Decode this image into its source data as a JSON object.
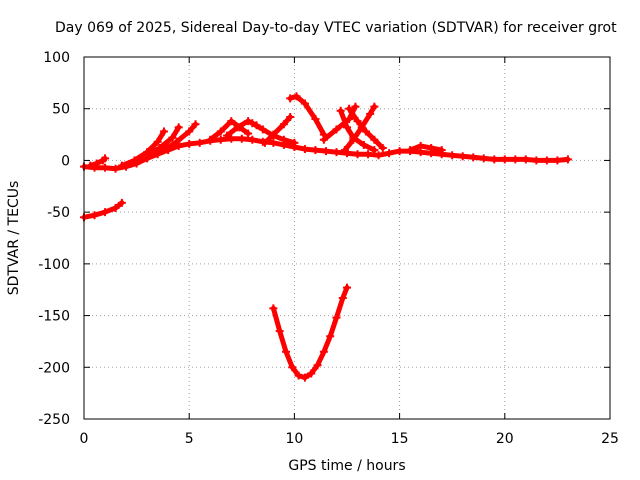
{
  "chart_data": {
    "type": "line",
    "title": "Day 069 of 2025, Sidereal Day-to-day VTEC variation (SDTVAR) for receiver grot",
    "xlabel": "GPS time / hours",
    "ylabel": "SDTVAR / TECUs",
    "xlim": [
      0,
      25
    ],
    "ylim": [
      -250,
      100
    ],
    "xticks": [
      0,
      5,
      10,
      15,
      20,
      25
    ],
    "yticks": [
      -250,
      -200,
      -150,
      -100,
      -50,
      0,
      50,
      100
    ],
    "xtick_labels": [
      "0",
      "5",
      "10",
      "15",
      "20",
      "25"
    ],
    "ytick_labels": [
      "-250",
      "-200",
      "-150",
      "-100",
      "-50",
      "0",
      "50",
      "100"
    ],
    "grid": true,
    "color": "#ff0000",
    "series": [
      {
        "x": [
          0,
          0.5,
          1.0,
          1.5,
          2.0,
          2.5,
          3.0,
          3.5,
          4.0,
          4.5,
          5.0,
          5.5,
          6.0,
          6.5,
          7.0,
          7.5,
          8.0,
          8.5,
          9.0,
          9.5,
          10.0,
          10.5,
          11.0,
          11.5,
          12.0,
          12.5,
          13.0,
          13.5,
          14.0,
          14.5,
          15.0,
          15.5,
          16.0,
          16.5,
          17.0,
          17.5,
          18.0,
          18.5,
          19.0,
          19.5,
          20.0,
          20.5,
          21.0,
          21.5,
          22.0,
          22.5,
          23.0
        ],
        "y": [
          -6,
          -7,
          -7,
          -8,
          -6,
          -3,
          2,
          6,
          10,
          14,
          16,
          17,
          19,
          20,
          21,
          21,
          20,
          18,
          17,
          15,
          13,
          11,
          10,
          9,
          8,
          7,
          6,
          6,
          5,
          7,
          9,
          9,
          8,
          7,
          6,
          5,
          4,
          3,
          2,
          1,
          1,
          1,
          1,
          0,
          0,
          0,
          1
        ]
      },
      {
        "x": [
          0,
          0.5,
          1.0,
          1.5,
          1.8
        ],
        "y": [
          -55,
          -53,
          -50,
          -46,
          -41
        ]
      },
      {
        "x": [
          0.3,
          0.6,
          0.9,
          1.0
        ],
        "y": [
          -5,
          -3,
          0,
          2
        ]
      },
      {
        "x": [
          1.8,
          2.4,
          3.0,
          3.5,
          3.8
        ],
        "y": [
          -5,
          0,
          8,
          18,
          28
        ]
      },
      {
        "x": [
          3.0,
          3.6,
          4.2,
          4.5
        ],
        "y": [
          5,
          12,
          22,
          32
        ]
      },
      {
        "x": [
          3.8,
          4.4,
          5.0,
          5.3
        ],
        "y": [
          10,
          18,
          28,
          35
        ]
      },
      {
        "x": [
          6.0,
          6.5,
          7.0,
          7.4,
          7.8
        ],
        "y": [
          20,
          28,
          38,
          32,
          26
        ]
      },
      {
        "x": [
          6.8,
          7.3,
          7.8,
          8.2
        ],
        "y": [
          24,
          32,
          38,
          34
        ]
      },
      {
        "x": [
          8.0,
          8.5,
          9.0,
          9.5,
          10.0
        ],
        "y": [
          36,
          30,
          24,
          20,
          17
        ]
      },
      {
        "x": [
          8.6,
          9.0,
          9.5,
          9.8
        ],
        "y": [
          17,
          25,
          35,
          42
        ]
      },
      {
        "x": [
          9.8,
          10.1,
          10.5,
          11.0,
          11.4
        ],
        "y": [
          60,
          62,
          55,
          40,
          25
        ]
      },
      {
        "x": [
          12.2,
          12.5,
          12.8,
          13.3,
          13.8
        ],
        "y": [
          48,
          32,
          22,
          15,
          10
        ]
      },
      {
        "x": [
          11.4,
          12.0,
          12.6,
          12.9
        ],
        "y": [
          20,
          30,
          40,
          52
        ]
      },
      {
        "x": [
          12.6,
          13.0,
          13.4,
          13.8,
          14.2
        ],
        "y": [
          50,
          38,
          28,
          20,
          12
        ]
      },
      {
        "x": [
          12.4,
          12.8,
          13.2,
          13.6,
          13.8
        ],
        "y": [
          10,
          20,
          32,
          45,
          52
        ]
      },
      {
        "x": [
          15.5,
          16.0,
          16.5,
          17.0
        ],
        "y": [
          10,
          14,
          12,
          10
        ]
      },
      {
        "x": [
          9.0,
          9.3,
          9.6,
          9.9,
          10.2,
          10.5,
          10.8,
          11.1,
          11.4,
          11.7,
          12.0,
          12.3,
          12.5
        ],
        "y": [
          -143,
          -165,
          -185,
          -200,
          -208,
          -210,
          -206,
          -198,
          -185,
          -170,
          -152,
          -133,
          -123
        ]
      }
    ]
  }
}
